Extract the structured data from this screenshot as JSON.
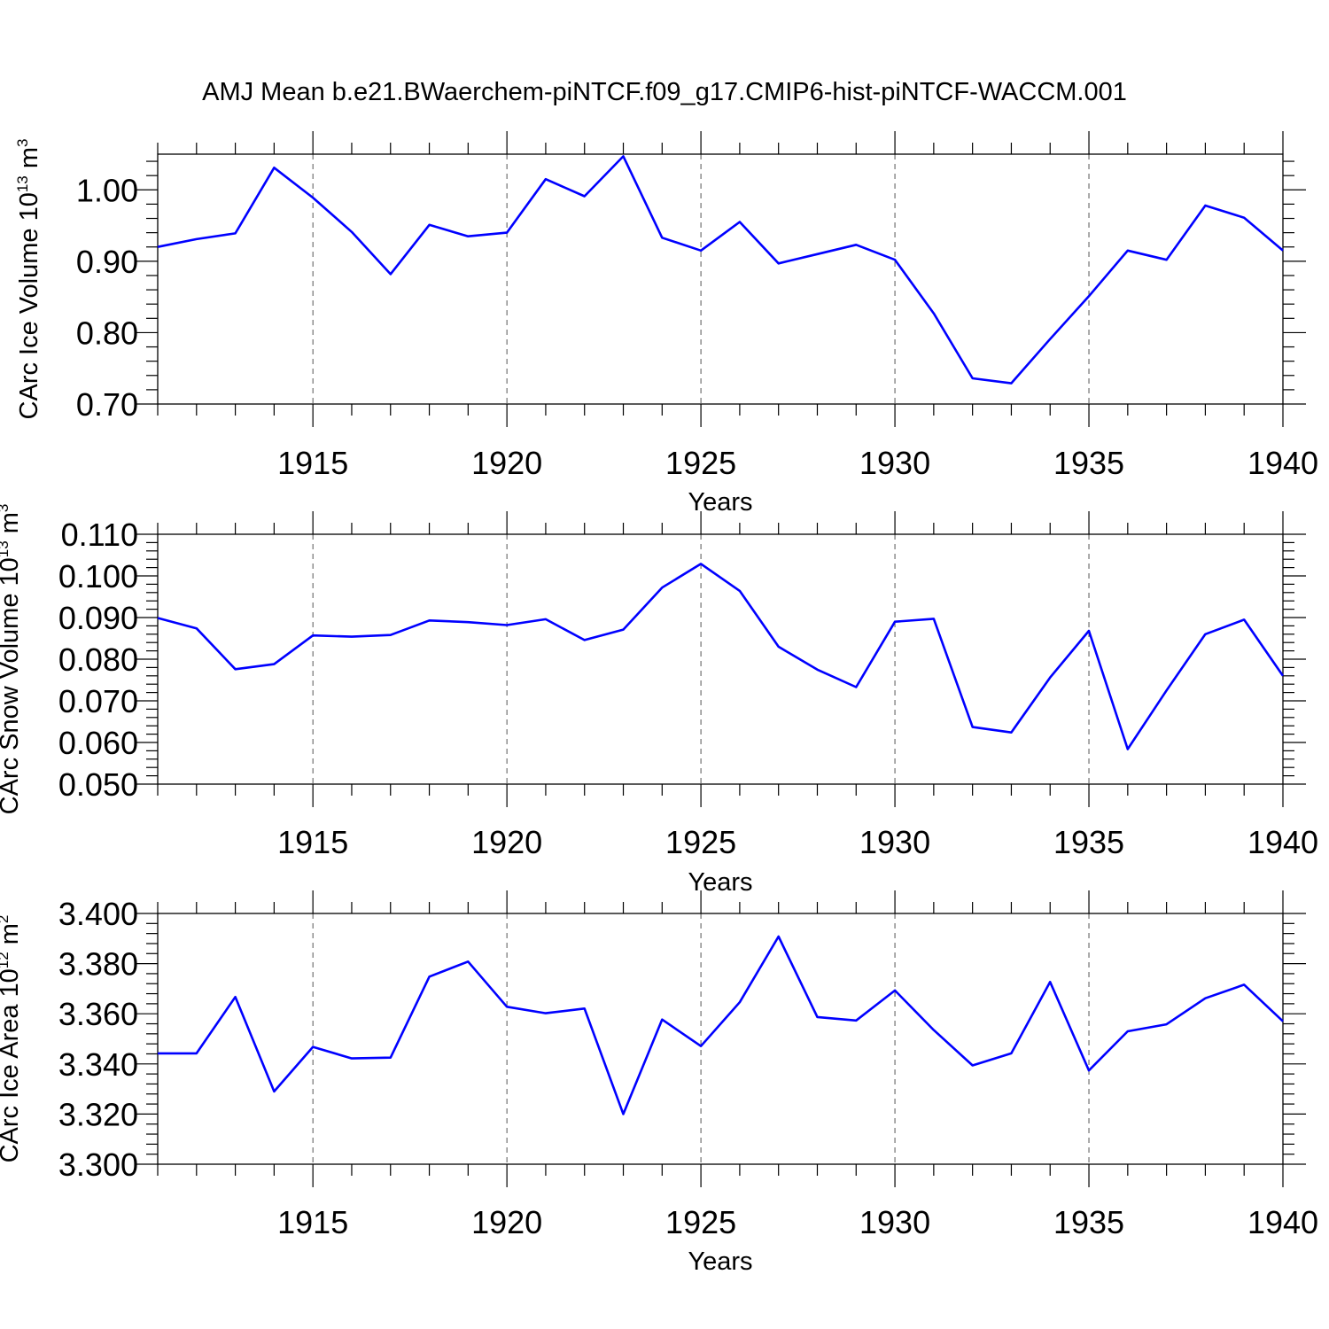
{
  "title": "AMJ Mean b.e21.BWaerchem-piNTCF.f09_g17.CMIP6-hist-piNTCF-WACCM.001",
  "colors": {
    "line": "#0000ff",
    "axis": "#000000",
    "grid": "#555555"
  },
  "chart_data": [
    {
      "type": "line",
      "xlabel": "Years",
      "ylabel": {
        "text": "CArc Ice Volume 10",
        "sup1": "13",
        "mid": " m",
        "sup2": "3"
      },
      "xlim": [
        1911,
        1940
      ],
      "ylim": [
        0.7,
        1.05
      ],
      "yticks": [
        0.7,
        0.8,
        0.9,
        1.0
      ],
      "yticklabels": [
        "0.70",
        "0.80",
        "0.90",
        "1.00"
      ],
      "xticks": [
        1915,
        1920,
        1925,
        1930,
        1935,
        1940
      ],
      "xticklabels": [
        "1915",
        "1920",
        "1925",
        "1930",
        "1935",
        "1940"
      ],
      "grid": "vertical dashed at major x ticks",
      "x": [
        1911,
        1912,
        1913,
        1914,
        1915,
        1916,
        1917,
        1918,
        1919,
        1920,
        1921,
        1922,
        1923,
        1924,
        1925,
        1926,
        1927,
        1928,
        1929,
        1930,
        1931,
        1932,
        1933,
        1934,
        1935,
        1936,
        1937,
        1938,
        1939,
        1940
      ],
      "values": [
        0.92,
        0.931,
        0.939,
        1.031,
        0.989,
        0.941,
        0.882,
        0.951,
        0.935,
        0.94,
        1.015,
        0.991,
        1.047,
        0.933,
        0.915,
        0.955,
        0.897,
        0.91,
        0.923,
        0.902,
        0.827,
        0.736,
        0.729,
        0.791,
        0.851,
        0.915,
        0.902,
        0.978,
        0.961,
        0.915
      ]
    },
    {
      "type": "line",
      "xlabel": "Years",
      "ylabel": {
        "text": "CArc Snow Volume 10",
        "sup1": "13",
        "mid": " m",
        "sup2": "3"
      },
      "xlim": [
        1911,
        1940
      ],
      "ylim": [
        0.05,
        0.11
      ],
      "yticks": [
        0.05,
        0.06,
        0.07,
        0.08,
        0.09,
        0.1,
        0.11
      ],
      "yticklabels": [
        "0.050",
        "0.060",
        "0.070",
        "0.080",
        "0.090",
        "0.100",
        "0.110"
      ],
      "xticks": [
        1915,
        1920,
        1925,
        1930,
        1935,
        1940
      ],
      "xticklabels": [
        "1915",
        "1920",
        "1925",
        "1930",
        "1935",
        "1940"
      ],
      "grid": "vertical dashed at major x ticks",
      "x": [
        1911,
        1912,
        1913,
        1914,
        1915,
        1916,
        1917,
        1918,
        1919,
        1920,
        1921,
        1922,
        1923,
        1924,
        1925,
        1926,
        1927,
        1928,
        1929,
        1930,
        1931,
        1932,
        1933,
        1934,
        1935,
        1936,
        1937,
        1938,
        1939,
        1940
      ],
      "values": [
        0.0899,
        0.0874,
        0.0776,
        0.0788,
        0.0857,
        0.0854,
        0.0858,
        0.0893,
        0.0889,
        0.0882,
        0.0896,
        0.0846,
        0.0871,
        0.0972,
        0.1029,
        0.0964,
        0.083,
        0.0775,
        0.0733,
        0.089,
        0.0897,
        0.0637,
        0.0624,
        0.0756,
        0.0868,
        0.0584,
        0.0725,
        0.086,
        0.0895,
        0.076
      ]
    },
    {
      "type": "line",
      "xlabel": "Years",
      "ylabel": {
        "text": "CArc Ice Area 10",
        "sup1": "12",
        "mid": " m",
        "sup2": "2"
      },
      "xlim": [
        1911,
        1940
      ],
      "ylim": [
        3.3,
        3.4
      ],
      "yticks": [
        3.3,
        3.32,
        3.34,
        3.36,
        3.38,
        3.4
      ],
      "yticklabels": [
        "3.300",
        "3.320",
        "3.340",
        "3.360",
        "3.380",
        "3.400"
      ],
      "xticks": [
        1915,
        1920,
        1925,
        1930,
        1935,
        1940
      ],
      "xticklabels": [
        "1915",
        "1920",
        "1925",
        "1930",
        "1935",
        "1940"
      ],
      "grid": "vertical dashed at major x ticks",
      "x": [
        1911,
        1912,
        1913,
        1914,
        1915,
        1916,
        1917,
        1918,
        1919,
        1920,
        1921,
        1922,
        1923,
        1924,
        1925,
        1926,
        1927,
        1928,
        1929,
        1930,
        1931,
        1932,
        1933,
        1934,
        1935,
        1936,
        1937,
        1938,
        1939,
        1940
      ],
      "values": [
        3.3442,
        3.3442,
        3.3667,
        3.329,
        3.3468,
        3.3422,
        3.3425,
        3.3748,
        3.3808,
        3.3628,
        3.3602,
        3.3621,
        3.32,
        3.3577,
        3.3471,
        3.3646,
        3.3908,
        3.3587,
        3.3573,
        3.3693,
        3.3535,
        3.3394,
        3.3442,
        3.3727,
        3.3374,
        3.353,
        3.3558,
        3.3662,
        3.3716,
        3.357
      ]
    }
  ]
}
